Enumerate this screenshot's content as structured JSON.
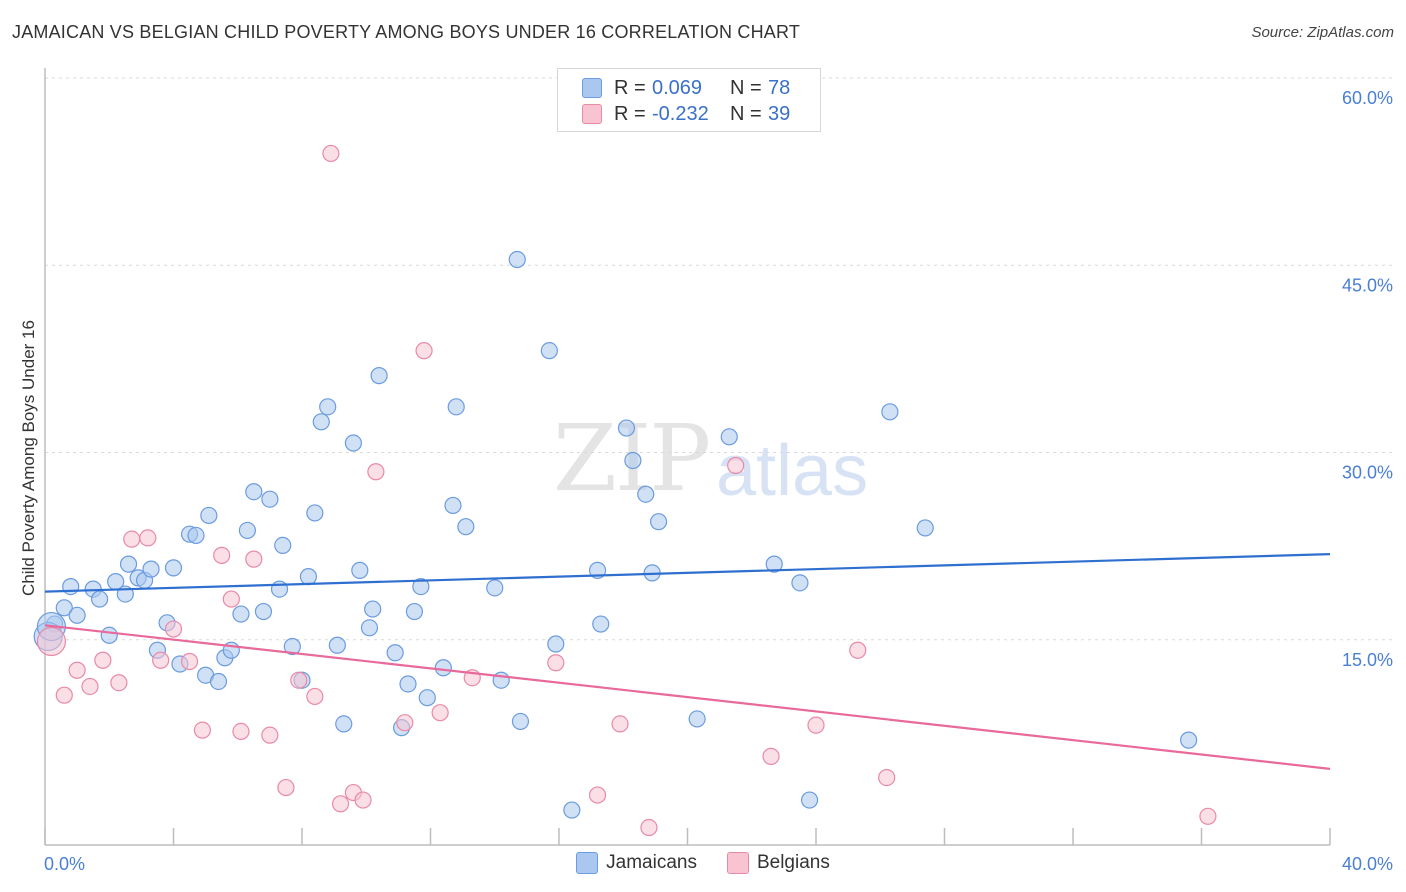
{
  "title": "JAMAICAN VS BELGIAN CHILD POVERTY AMONG BOYS UNDER 16 CORRELATION CHART",
  "source": "Source: ZipAtlas.com",
  "watermark": {
    "zip": "ZIP",
    "atlas": "atlas"
  },
  "legend": {
    "rows": [
      {
        "r_label": "R =",
        "r_value": "0.069",
        "n_label": "N =",
        "n_value": "78",
        "color": "#aac8ef",
        "border": "#6b9be0"
      },
      {
        "r_label": "R =",
        "r_value": "-0.232",
        "n_label": "N =",
        "n_value": "39",
        "color": "#f8c4d2",
        "border": "#e88aa7"
      }
    ]
  },
  "bottom_legend": [
    {
      "label": "Jamaicans",
      "color": "#aac8ef",
      "border": "#6b9be0"
    },
    {
      "label": "Belgians",
      "color": "#f8c4d2",
      "border": "#e88aa7"
    }
  ],
  "chart_data": {
    "type": "scatter",
    "title": "JAMAICAN VS BELGIAN CHILD POVERTY AMONG BOYS UNDER 16 CORRELATION CHART",
    "xlabel": "",
    "ylabel": "Child Poverty Among Boys Under 16",
    "xlim": [
      0,
      40
    ],
    "ylim": [
      0,
      60
    ],
    "x_tick_labels": [
      "0.0%",
      "40.0%"
    ],
    "y_ticks": [
      15,
      30,
      45,
      60
    ],
    "y_tick_labels": [
      "15.0%",
      "30.0%",
      "45.0%",
      "60.0%"
    ],
    "series": [
      {
        "name": "Jamaicans",
        "color": "#6b9be0",
        "fill": "#aac8ef",
        "trend": {
          "x": [
            0,
            40
          ],
          "y": [
            20.3,
            23.3
          ],
          "color": "#2f6fd0"
        },
        "points": [
          [
            0.3,
            17.7
          ],
          [
            0.6,
            19.0
          ],
          [
            0.8,
            20.7
          ],
          [
            1.0,
            18.4
          ],
          [
            1.5,
            20.5
          ],
          [
            1.7,
            19.7
          ],
          [
            2.0,
            16.8
          ],
          [
            2.2,
            21.1
          ],
          [
            2.5,
            20.1
          ],
          [
            2.6,
            22.5
          ],
          [
            2.9,
            21.4
          ],
          [
            3.1,
            21.2
          ],
          [
            3.3,
            22.1
          ],
          [
            3.5,
            15.6
          ],
          [
            3.8,
            17.8
          ],
          [
            4.0,
            22.2
          ],
          [
            4.2,
            14.5
          ],
          [
            4.5,
            24.9
          ],
          [
            4.7,
            24.8
          ],
          [
            5.0,
            13.6
          ],
          [
            5.1,
            26.4
          ],
          [
            5.4,
            13.1
          ],
          [
            5.6,
            15.0
          ],
          [
            5.8,
            15.6
          ],
          [
            6.1,
            18.5
          ],
          [
            6.3,
            25.2
          ],
          [
            6.5,
            28.3
          ],
          [
            6.8,
            18.7
          ],
          [
            7.0,
            27.7
          ],
          [
            7.3,
            20.5
          ],
          [
            7.4,
            24.0
          ],
          [
            7.7,
            15.9
          ],
          [
            8.0,
            13.2
          ],
          [
            8.2,
            21.5
          ],
          [
            8.4,
            26.6
          ],
          [
            8.6,
            33.9
          ],
          [
            8.8,
            35.1
          ],
          [
            9.1,
            16.0
          ],
          [
            9.3,
            9.7
          ],
          [
            9.6,
            32.2
          ],
          [
            9.8,
            22.0
          ],
          [
            10.1,
            17.4
          ],
          [
            10.2,
            18.9
          ],
          [
            10.4,
            37.6
          ],
          [
            10.9,
            15.4
          ],
          [
            11.1,
            9.4
          ],
          [
            11.3,
            12.9
          ],
          [
            11.5,
            18.7
          ],
          [
            11.7,
            20.7
          ],
          [
            11.9,
            11.8
          ],
          [
            12.4,
            14.2
          ],
          [
            12.7,
            27.2
          ],
          [
            12.8,
            35.1
          ],
          [
            13.1,
            25.5
          ],
          [
            14.0,
            20.6
          ],
          [
            14.2,
            13.2
          ],
          [
            14.7,
            46.9
          ],
          [
            14.8,
            9.9
          ],
          [
            15.7,
            39.6
          ],
          [
            15.9,
            16.1
          ],
          [
            16.4,
            2.8
          ],
          [
            17.2,
            22.0
          ],
          [
            17.3,
            17.7
          ],
          [
            18.1,
            33.4
          ],
          [
            18.3,
            30.8
          ],
          [
            18.7,
            28.1
          ],
          [
            18.9,
            21.8
          ],
          [
            19.1,
            25.9
          ],
          [
            20.3,
            10.1
          ],
          [
            21.3,
            32.7
          ],
          [
            22.7,
            22.5
          ],
          [
            23.5,
            21.0
          ],
          [
            23.8,
            3.6
          ],
          [
            26.3,
            34.7
          ],
          [
            27.4,
            25.4
          ],
          [
            35.6,
            8.4
          ],
          [
            0.1,
            16.7
          ],
          [
            0.2,
            17.5
          ]
        ]
      },
      {
        "name": "Belgians",
        "color": "#e88aa7",
        "fill": "#f8c4d2",
        "trend": {
          "x": [
            0,
            40
          ],
          "y": [
            17.6,
            6.1
          ],
          "color": "#e8699a"
        },
        "points": [
          [
            0.2,
            16.3
          ],
          [
            0.6,
            12.0
          ],
          [
            1.0,
            14.0
          ],
          [
            1.4,
            12.7
          ],
          [
            1.8,
            14.8
          ],
          [
            2.3,
            13.0
          ],
          [
            2.7,
            24.5
          ],
          [
            3.2,
            24.6
          ],
          [
            3.6,
            14.8
          ],
          [
            4.0,
            17.3
          ],
          [
            4.5,
            14.7
          ],
          [
            4.9,
            9.2
          ],
          [
            5.5,
            23.2
          ],
          [
            5.8,
            19.7
          ],
          [
            6.1,
            9.1
          ],
          [
            6.5,
            22.9
          ],
          [
            7.0,
            8.8
          ],
          [
            7.5,
            4.6
          ],
          [
            7.9,
            13.2
          ],
          [
            8.4,
            11.9
          ],
          [
            8.9,
            55.4
          ],
          [
            9.2,
            3.3
          ],
          [
            9.6,
            4.2
          ],
          [
            9.9,
            3.6
          ],
          [
            10.3,
            29.9
          ],
          [
            11.2,
            9.8
          ],
          [
            11.8,
            39.6
          ],
          [
            12.3,
            10.6
          ],
          [
            13.3,
            13.4
          ],
          [
            15.9,
            14.6
          ],
          [
            17.2,
            4.0
          ],
          [
            17.9,
            9.7
          ],
          [
            18.8,
            1.4
          ],
          [
            21.5,
            30.4
          ],
          [
            22.6,
            7.1
          ],
          [
            24.0,
            9.6
          ],
          [
            25.3,
            15.6
          ],
          [
            26.2,
            5.4
          ],
          [
            36.2,
            2.3
          ]
        ]
      }
    ]
  }
}
